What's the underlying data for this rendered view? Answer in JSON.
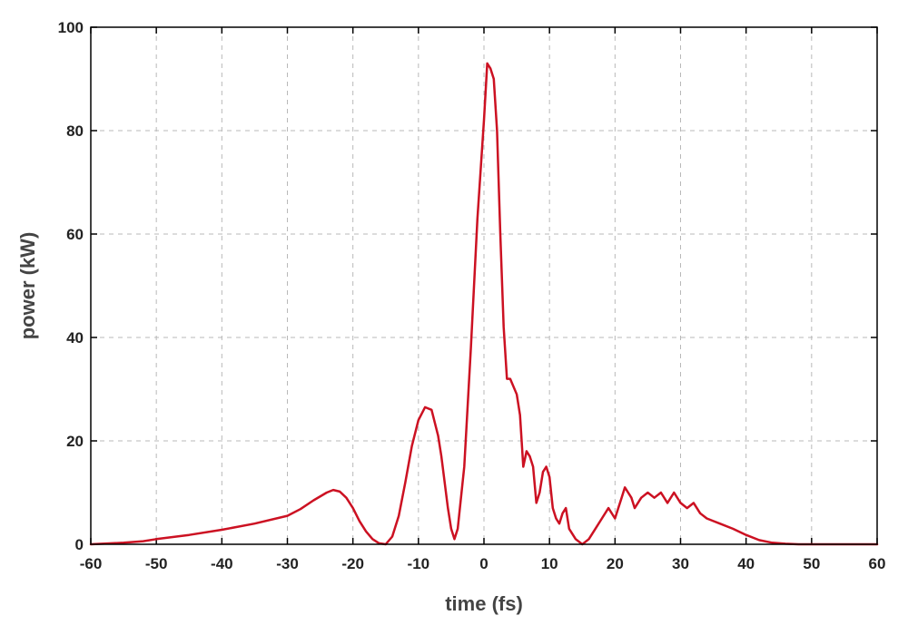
{
  "chart_data": {
    "type": "line",
    "xlabel": "time (fs)",
    "ylabel": "power (kW)",
    "xlim": [
      -60,
      60
    ],
    "ylim": [
      0,
      100
    ],
    "xticks": [
      -60,
      -50,
      -40,
      -30,
      -20,
      -10,
      0,
      10,
      20,
      30,
      40,
      50,
      60
    ],
    "yticks": [
      0,
      20,
      40,
      60,
      80,
      100
    ],
    "grid": true,
    "series_color": "#cc1122",
    "series": [
      {
        "x": [
          -60,
          -55,
          -52,
          -50,
          -45,
          -40,
          -35,
          -30,
          -28,
          -26,
          -24,
          -23,
          -22,
          -21,
          -20,
          -19,
          -18,
          -17,
          -16,
          -15,
          -14,
          -13,
          -12,
          -11,
          -10,
          -9,
          -8,
          -7,
          -6.5,
          -6,
          -5.5,
          -5,
          -4.5,
          -4,
          -3,
          -2,
          -1,
          0,
          0.5,
          1,
          1.5,
          2,
          2.5,
          3,
          3.5,
          4,
          5,
          5.5,
          6,
          6.5,
          7,
          7.5,
          8,
          8.5,
          9,
          9.5,
          10,
          10.5,
          11,
          11.5,
          12,
          12.5,
          13,
          14,
          15,
          16,
          17,
          18,
          19,
          20,
          21,
          21.5,
          22,
          22.5,
          23,
          24,
          25,
          26,
          27,
          28,
          29,
          30,
          31,
          32,
          33,
          34,
          35,
          36,
          38,
          40,
          42,
          44,
          46,
          48,
          50,
          52,
          55,
          58,
          60
        ],
        "y": [
          0,
          0.3,
          0.6,
          1,
          1.8,
          2.8,
          4,
          5.5,
          6.8,
          8.5,
          10,
          10.5,
          10.2,
          9,
          7,
          4.5,
          2.5,
          1,
          0.2,
          0,
          1.5,
          5.5,
          12,
          19,
          24,
          26.5,
          26,
          21,
          17,
          12,
          7,
          3,
          1,
          3,
          15,
          38,
          63,
          82,
          93,
          92,
          90,
          80,
          60,
          42,
          32,
          32,
          29,
          25,
          15,
          18,
          17,
          15,
          8,
          10,
          14,
          15,
          13,
          7,
          5,
          4,
          6,
          7,
          3,
          1,
          0,
          1,
          3,
          5,
          7,
          5,
          9,
          11,
          10,
          9,
          7,
          9,
          10,
          9,
          10,
          8,
          10,
          8,
          7,
          8,
          6,
          5,
          4.5,
          4,
          3,
          1.8,
          0.8,
          0.3,
          0.1,
          0,
          0,
          0,
          0,
          0,
          0
        ]
      }
    ]
  }
}
